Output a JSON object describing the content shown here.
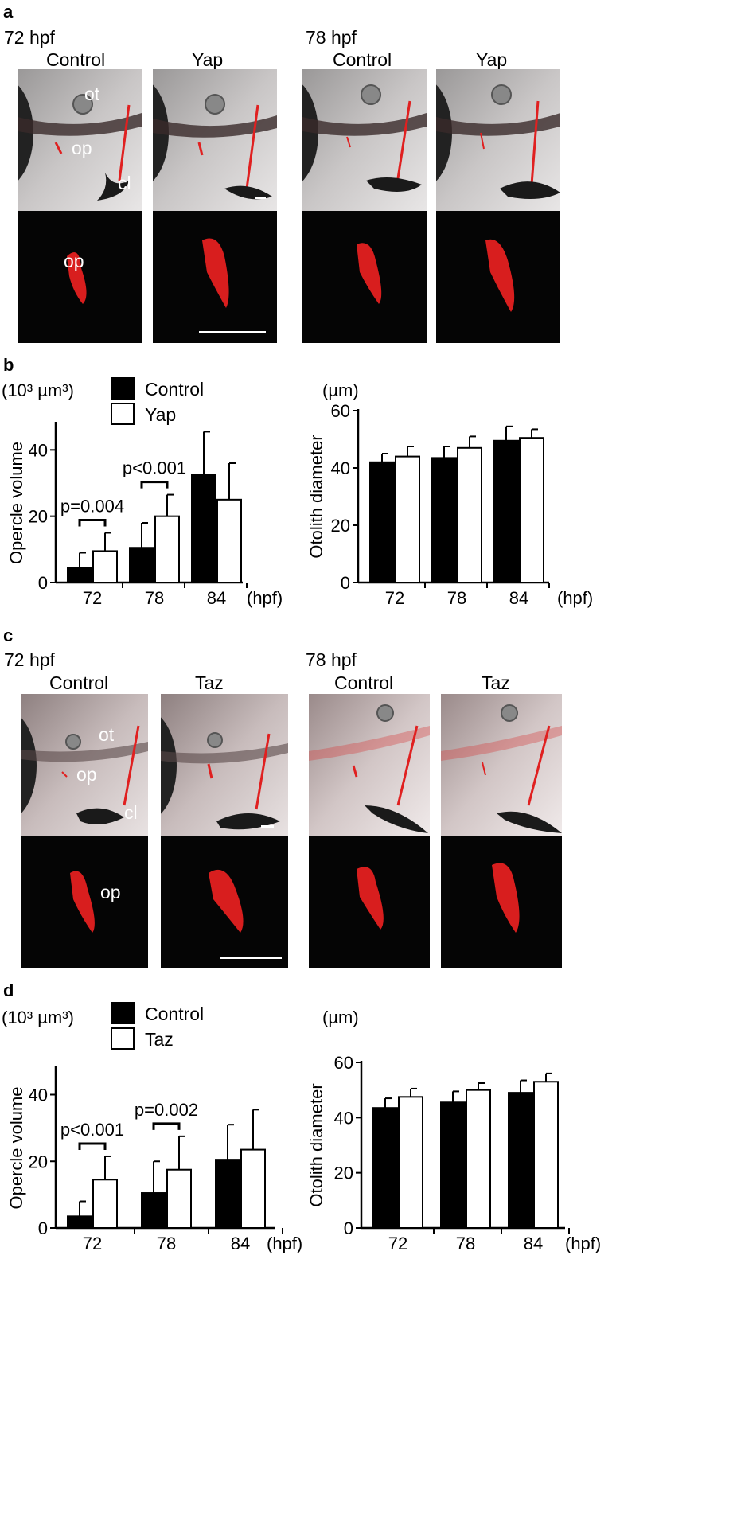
{
  "panel_a": {
    "label": "a",
    "group_left": "72 hpf",
    "group_right": "78 hpf",
    "col_labels": [
      "Control",
      "Yap",
      "Control",
      "Yap"
    ],
    "annotations": {
      "ot": "ot",
      "op": "op",
      "cl": "cl",
      "op_zoom": "op"
    }
  },
  "panel_b": {
    "label": "b"
  },
  "panel_c": {
    "label": "c",
    "group_left": "72 hpf",
    "group_right": "78 hpf",
    "col_labels": [
      "Control",
      "Taz",
      "Control",
      "Taz"
    ],
    "annotations": {
      "ot": "ot",
      "op": "op",
      "cl": "cl",
      "op_zoom": "op"
    }
  },
  "panel_d": {
    "label": "d"
  },
  "chart_data": [
    {
      "id": "b-left",
      "type": "bar",
      "ylabel": "Opercle volume",
      "unit": "(10³ µm³)",
      "x_unit": "(hpf)",
      "categories": [
        "72",
        "78",
        "84"
      ],
      "ylim": [
        0,
        48
      ],
      "yticks": [
        "0",
        "20",
        "40"
      ],
      "legend": "top",
      "series": [
        {
          "name": "Control",
          "color": "#000000",
          "values": [
            4.5,
            10.5,
            32.5
          ],
          "errors": [
            4.5,
            7.5,
            13
          ]
        },
        {
          "name": "Yap",
          "color": "#ffffff",
          "values": [
            9.5,
            20,
            25
          ],
          "errors": [
            5.5,
            6.5,
            11
          ]
        }
      ],
      "annotations": [
        {
          "text": "p=0.004",
          "category": "72"
        },
        {
          "text": "p<0.001",
          "category": "78"
        }
      ]
    },
    {
      "id": "b-right",
      "type": "bar",
      "ylabel": "Otolith diameter",
      "unit": "(µm)",
      "x_unit": "(hpf)",
      "categories": [
        "72",
        "78",
        "84"
      ],
      "ylim": [
        0,
        60
      ],
      "yticks": [
        "0",
        "20",
        "40",
        "60"
      ],
      "series": [
        {
          "name": "Control",
          "color": "#000000",
          "values": [
            42,
            43.5,
            49.5
          ],
          "errors": [
            3,
            4,
            5
          ]
        },
        {
          "name": "Yap",
          "color": "#ffffff",
          "values": [
            44,
            47,
            50.5
          ],
          "errors": [
            3.5,
            4,
            3
          ]
        }
      ]
    },
    {
      "id": "d-left",
      "type": "bar",
      "ylabel": "Opercle volume",
      "unit": "(10³ µm³)",
      "x_unit": "(hpf)",
      "categories": [
        "72",
        "78",
        "84"
      ],
      "ylim": [
        0,
        48
      ],
      "yticks": [
        "0",
        "20",
        "40"
      ],
      "legend": "top",
      "series": [
        {
          "name": "Control",
          "color": "#000000",
          "values": [
            3.5,
            10.5,
            20.5
          ],
          "errors": [
            4.5,
            9.5,
            10.5
          ]
        },
        {
          "name": "Taz",
          "color": "#ffffff",
          "values": [
            14.5,
            17.5,
            23.5
          ],
          "errors": [
            7,
            10,
            12
          ]
        }
      ],
      "annotations": [
        {
          "text": "p<0.001",
          "category": "72"
        },
        {
          "text": "p=0.002",
          "category": "78"
        }
      ]
    },
    {
      "id": "d-right",
      "type": "bar",
      "ylabel": "Otolith diameter",
      "unit": "(µm)",
      "x_unit": "(hpf)",
      "categories": [
        "72",
        "78",
        "84"
      ],
      "ylim": [
        0,
        60
      ],
      "yticks": [
        "0",
        "20",
        "40",
        "60"
      ],
      "series": [
        {
          "name": "Control",
          "color": "#000000",
          "values": [
            43.5,
            45.5,
            49
          ],
          "errors": [
            3.5,
            4,
            4.5
          ]
        },
        {
          "name": "Taz",
          "color": "#ffffff",
          "values": [
            47.5,
            50,
            53
          ],
          "errors": [
            3,
            2.5,
            3
          ]
        }
      ]
    }
  ]
}
